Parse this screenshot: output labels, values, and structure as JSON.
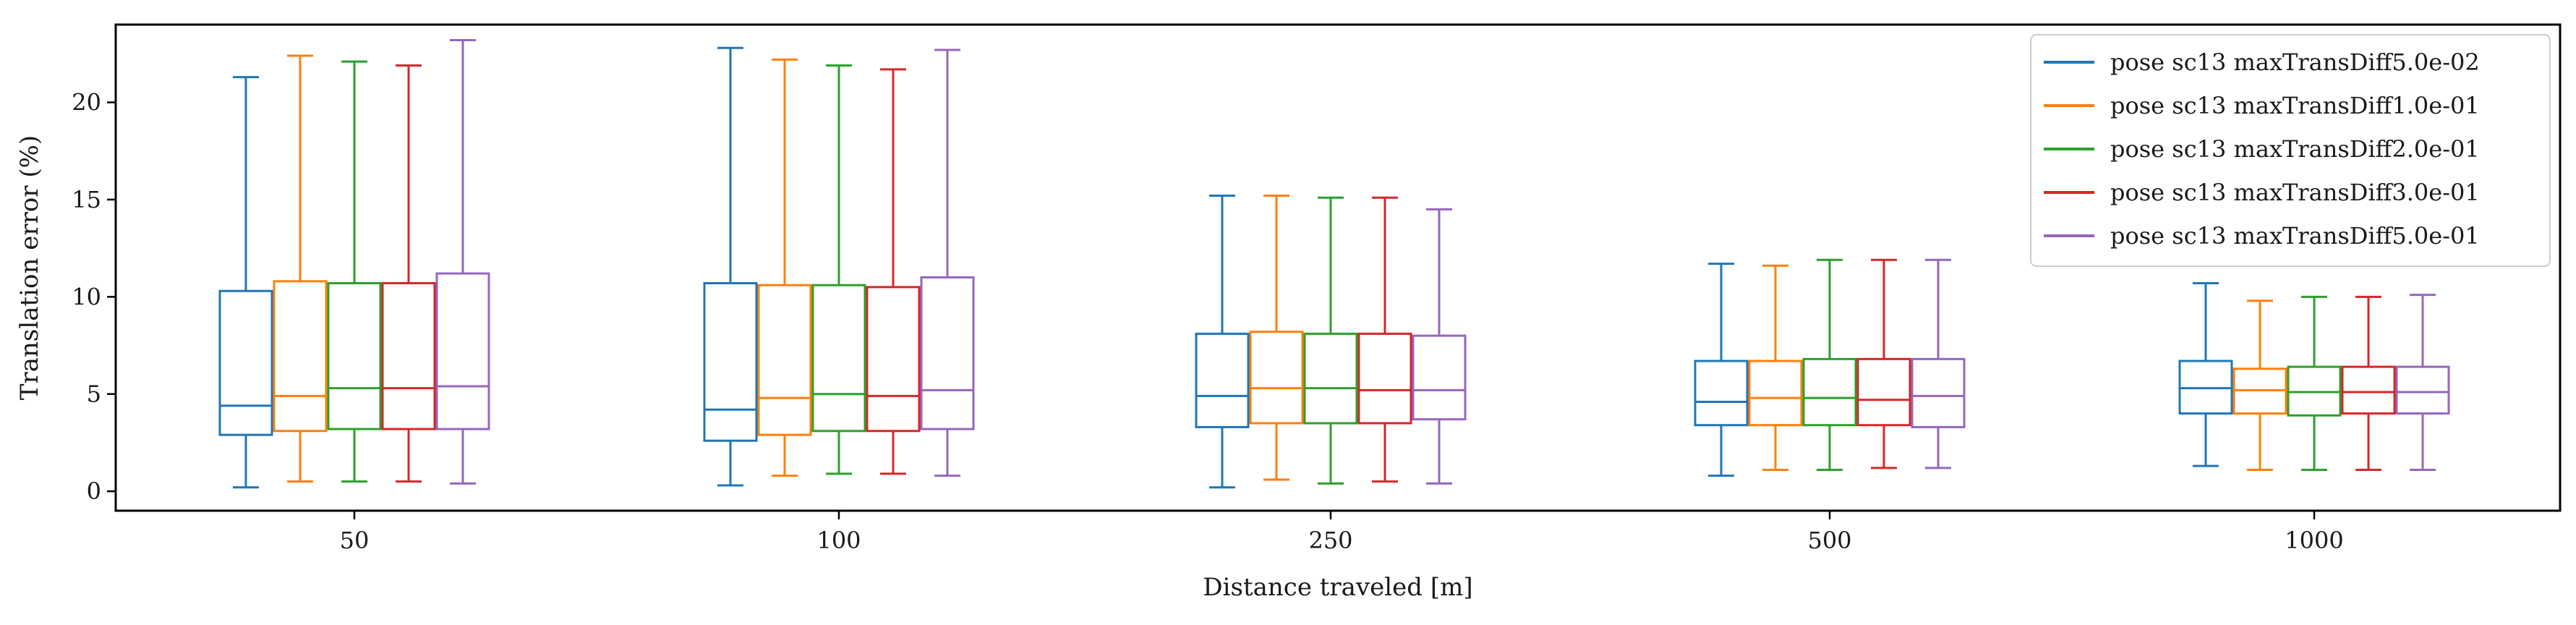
{
  "chart_data": {
    "type": "box",
    "xlabel": "Distance traveled [m]",
    "ylabel": "Translation error (%)",
    "categories": [
      "50",
      "100",
      "250",
      "500",
      "1000"
    ],
    "ylim": [
      -1.0,
      24.0
    ],
    "yticks": [
      0,
      5,
      10,
      15,
      20
    ],
    "grid": false,
    "legend_position": "top-right",
    "series": [
      {
        "name": "pose sc13 maxTransDiff5.0e-02",
        "color": "#1f77b4",
        "boxes": [
          {
            "min": 0.2,
            "q1": 2.9,
            "median": 4.4,
            "q3": 10.3,
            "max": 21.3
          },
          {
            "min": 0.3,
            "q1": 2.6,
            "median": 4.2,
            "q3": 10.7,
            "max": 22.8
          },
          {
            "min": 0.2,
            "q1": 3.3,
            "median": 4.9,
            "q3": 8.1,
            "max": 15.2
          },
          {
            "min": 0.8,
            "q1": 3.4,
            "median": 4.6,
            "q3": 6.7,
            "max": 11.7
          },
          {
            "min": 1.3,
            "q1": 4.0,
            "median": 5.3,
            "q3": 6.7,
            "max": 10.7
          }
        ]
      },
      {
        "name": "pose sc13 maxTransDiff1.0e-01",
        "color": "#ff7f0e",
        "boxes": [
          {
            "min": 0.5,
            "q1": 3.1,
            "median": 4.9,
            "q3": 10.8,
            "max": 22.4
          },
          {
            "min": 0.8,
            "q1": 2.9,
            "median": 4.8,
            "q3": 10.6,
            "max": 22.2
          },
          {
            "min": 0.6,
            "q1": 3.5,
            "median": 5.3,
            "q3": 8.2,
            "max": 15.2
          },
          {
            "min": 1.1,
            "q1": 3.4,
            "median": 4.8,
            "q3": 6.7,
            "max": 11.6
          },
          {
            "min": 1.1,
            "q1": 4.0,
            "median": 5.2,
            "q3": 6.3,
            "max": 9.8
          }
        ]
      },
      {
        "name": "pose sc13 maxTransDiff2.0e-01",
        "color": "#2ca02c",
        "boxes": [
          {
            "min": 0.5,
            "q1": 3.2,
            "median": 5.3,
            "q3": 10.7,
            "max": 22.1
          },
          {
            "min": 0.9,
            "q1": 3.1,
            "median": 5.0,
            "q3": 10.6,
            "max": 21.9
          },
          {
            "min": 0.4,
            "q1": 3.5,
            "median": 5.3,
            "q3": 8.1,
            "max": 15.1
          },
          {
            "min": 1.1,
            "q1": 3.4,
            "median": 4.8,
            "q3": 6.8,
            "max": 11.9
          },
          {
            "min": 1.1,
            "q1": 3.9,
            "median": 5.1,
            "q3": 6.4,
            "max": 10.0
          }
        ]
      },
      {
        "name": "pose sc13 maxTransDiff3.0e-01",
        "color": "#d62728",
        "boxes": [
          {
            "min": 0.5,
            "q1": 3.2,
            "median": 5.3,
            "q3": 10.7,
            "max": 21.9
          },
          {
            "min": 0.9,
            "q1": 3.1,
            "median": 4.9,
            "q3": 10.5,
            "max": 21.7
          },
          {
            "min": 0.5,
            "q1": 3.5,
            "median": 5.2,
            "q3": 8.1,
            "max": 15.1
          },
          {
            "min": 1.2,
            "q1": 3.4,
            "median": 4.7,
            "q3": 6.8,
            "max": 11.9
          },
          {
            "min": 1.1,
            "q1": 4.0,
            "median": 5.1,
            "q3": 6.4,
            "max": 10.0
          }
        ]
      },
      {
        "name": "pose sc13 maxTransDiff5.0e-01",
        "color": "#9467bd",
        "boxes": [
          {
            "min": 0.4,
            "q1": 3.2,
            "median": 5.4,
            "q3": 11.2,
            "max": 23.2
          },
          {
            "min": 0.8,
            "q1": 3.2,
            "median": 5.2,
            "q3": 11.0,
            "max": 22.7
          },
          {
            "min": 0.4,
            "q1": 3.7,
            "median": 5.2,
            "q3": 8.0,
            "max": 14.5
          },
          {
            "min": 1.2,
            "q1": 3.3,
            "median": 4.9,
            "q3": 6.8,
            "max": 11.9
          },
          {
            "min": 1.1,
            "q1": 4.0,
            "median": 5.1,
            "q3": 6.4,
            "max": 10.1
          }
        ]
      }
    ]
  }
}
